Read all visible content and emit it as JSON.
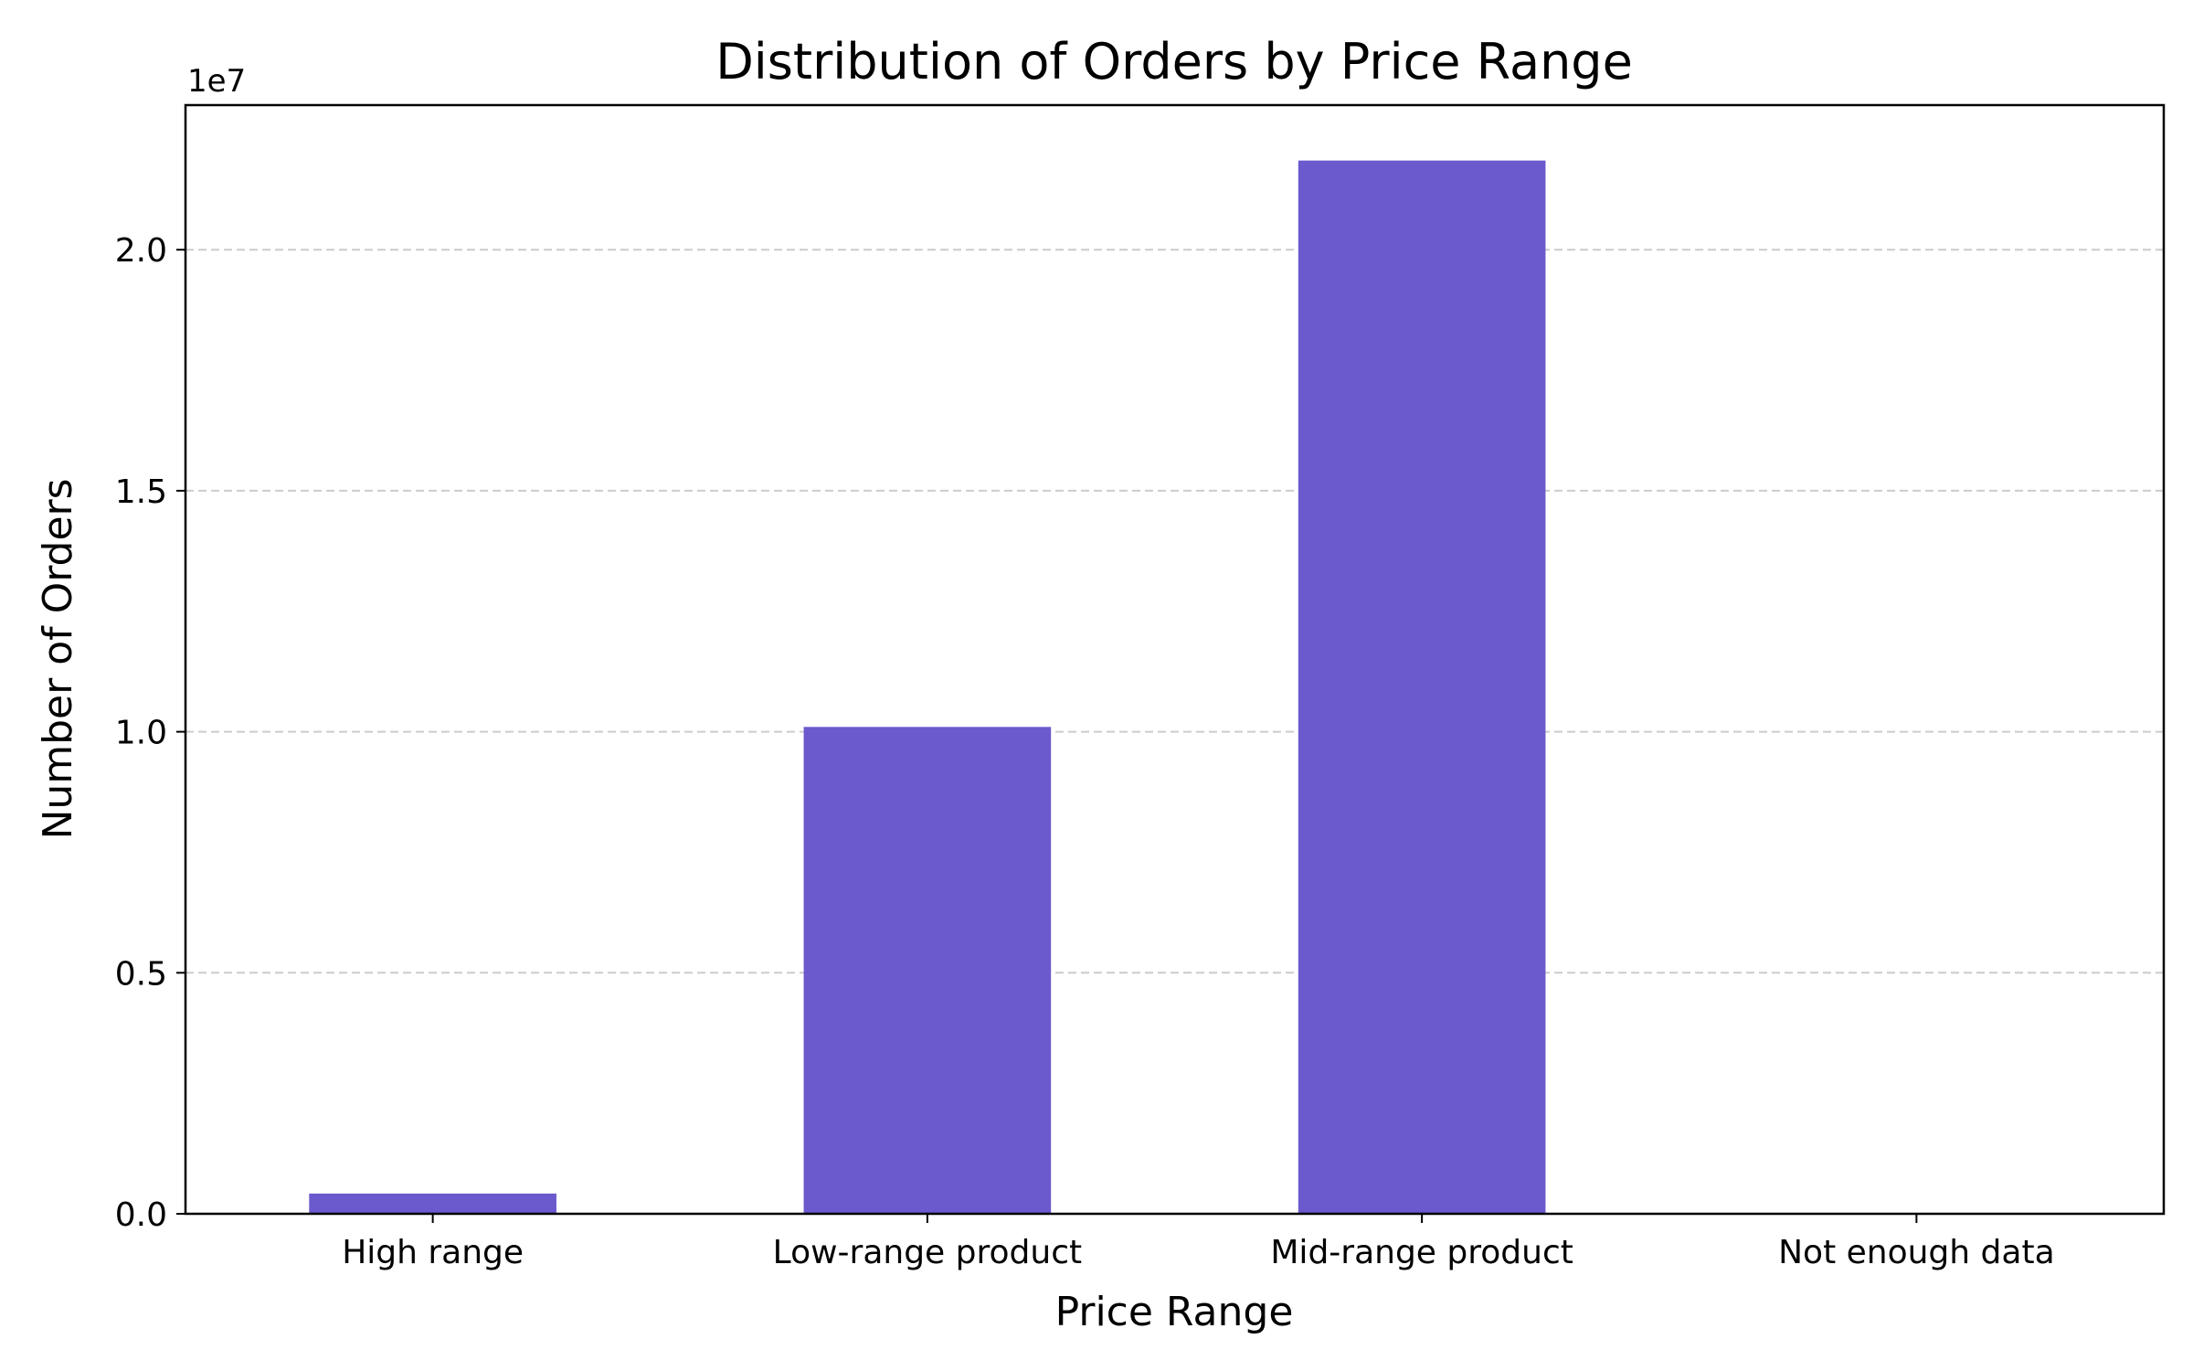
{
  "chart_data": {
    "type": "bar",
    "title": "Distribution of Orders by Price Range",
    "xlabel": "Price Range",
    "ylabel": "Number of Orders",
    "categories": [
      "High range",
      "Low-range product",
      "Mid-range product",
      "Not enough data"
    ],
    "values": [
      420000,
      10100000,
      21850000,
      0
    ],
    "ylim": [
      0,
      23000000
    ],
    "yticks": [
      0,
      5000000,
      10000000,
      15000000,
      20000000
    ],
    "ytick_labels": [
      "0.0",
      "0.5",
      "1.0",
      "1.5",
      "2.0"
    ],
    "y_offset_label": "1e7",
    "grid": "y, dashed",
    "legend": "none",
    "bar_color": "#6A5ACD",
    "grid_color": "#cccccc"
  }
}
